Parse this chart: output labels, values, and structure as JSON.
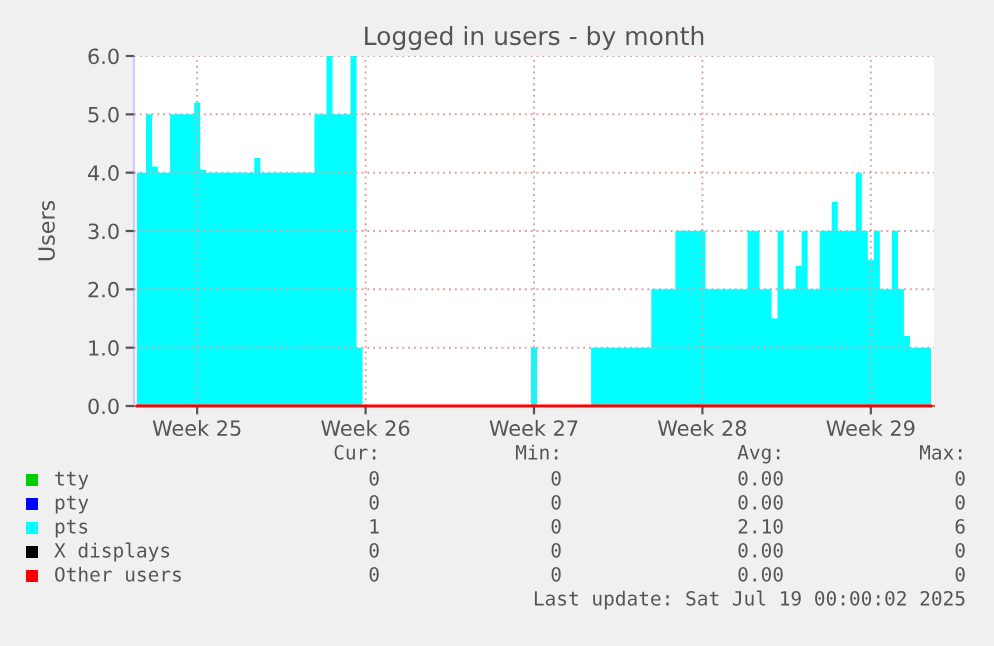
{
  "chart_data": {
    "type": "area",
    "title": "Logged in users - by month",
    "ylabel": "Users",
    "ylim": [
      0,
      6
    ],
    "categories": [
      null,
      null,
      null,
      null,
      null,
      null,
      null,
      null,
      null,
      null,
      "Week 25",
      null,
      null,
      null,
      null,
      null,
      null,
      null,
      null,
      null,
      null,
      null,
      null,
      null,
      null,
      null,
      null,
      null,
      null,
      null,
      null,
      null,
      null,
      null,
      null,
      null,
      null,
      null,
      "Week 26",
      null,
      null,
      null,
      null,
      null,
      null,
      null,
      null,
      null,
      null,
      null,
      null,
      null,
      null,
      null,
      null,
      null,
      null,
      null,
      null,
      null,
      null,
      null,
      null,
      null,
      null,
      null,
      "Week 27",
      null,
      null,
      null,
      null,
      null,
      null,
      null,
      null,
      null,
      null,
      null,
      null,
      null,
      null,
      null,
      null,
      null,
      null,
      null,
      null,
      null,
      null,
      null,
      null,
      null,
      null,
      null,
      "Week 28",
      null,
      null,
      null,
      null,
      null,
      null,
      null,
      null,
      null,
      null,
      null,
      null,
      null,
      null,
      null,
      null,
      null,
      null,
      null,
      null,
      null,
      null,
      null,
      null,
      null,
      null,
      null,
      "Week 29",
      null,
      null,
      null,
      null,
      null,
      null,
      null,
      null,
      null,
      null
    ],
    "yticks": [
      {
        "value": 0,
        "label": "0.0"
      },
      {
        "value": 1,
        "label": "1.0"
      },
      {
        "value": 2,
        "label": "2.0"
      },
      {
        "value": 3,
        "label": "3.0"
      },
      {
        "value": 4,
        "label": "4.0"
      },
      {
        "value": 5,
        "label": "5.0"
      },
      {
        "value": 6,
        "label": "6.0"
      }
    ],
    "grid": true,
    "legend": "bottom",
    "series": [
      {
        "name": "tty",
        "type": "line",
        "color": "#00cc00",
        "values": [
          null,
          null,
          null,
          null,
          null,
          null,
          null,
          null,
          null,
          null,
          null,
          null,
          null,
          null,
          null,
          null,
          null,
          null,
          null,
          null,
          null,
          null,
          null,
          null,
          null,
          null,
          null,
          null,
          null,
          null,
          null,
          null,
          null,
          null,
          null,
          null,
          null,
          null,
          null,
          null,
          null,
          null,
          null,
          null,
          null,
          null,
          null,
          null,
          null,
          null,
          null,
          null,
          null,
          null,
          null,
          null,
          null,
          null,
          null,
          null,
          null,
          null,
          null,
          null,
          null,
          null,
          null,
          null,
          null,
          null,
          null,
          null,
          null,
          null,
          null,
          null,
          null,
          null,
          null,
          null,
          null,
          null,
          null,
          null,
          null,
          null,
          null,
          null,
          null,
          null,
          null,
          null,
          null,
          null,
          null,
          null,
          null,
          null,
          null,
          null,
          null,
          null,
          null,
          null,
          null,
          null,
          null,
          null,
          null,
          null,
          null,
          null,
          null,
          null,
          null,
          null,
          null,
          null,
          null,
          null,
          null,
          null,
          null,
          null,
          null,
          null,
          null,
          null,
          null,
          null,
          null,
          null,
          null
        ]
      },
      {
        "name": "pty",
        "type": "line",
        "color": "#0000ff",
        "values": [
          null,
          null,
          null,
          null,
          null,
          null,
          null,
          null,
          null,
          null,
          null,
          null,
          null,
          null,
          null,
          null,
          null,
          null,
          null,
          null,
          null,
          null,
          null,
          null,
          null,
          null,
          null,
          null,
          null,
          null,
          null,
          null,
          null,
          null,
          null,
          null,
          null,
          null,
          null,
          null,
          null,
          null,
          null,
          null,
          null,
          null,
          null,
          null,
          null,
          null,
          null,
          null,
          null,
          null,
          null,
          null,
          null,
          null,
          null,
          null,
          null,
          null,
          null,
          null,
          null,
          null,
          null,
          null,
          null,
          null,
          null,
          null,
          null,
          null,
          null,
          null,
          null,
          null,
          null,
          null,
          null,
          null,
          null,
          null,
          null,
          null,
          null,
          null,
          null,
          null,
          null,
          null,
          null,
          null,
          null,
          null,
          null,
          null,
          null,
          null,
          null,
          null,
          null,
          null,
          null,
          null,
          null,
          null,
          null,
          null,
          null,
          null,
          null,
          null,
          null,
          null,
          null,
          null,
          null,
          null,
          null,
          null,
          null,
          null,
          null,
          null,
          null,
          null,
          null,
          null,
          null,
          null,
          null
        ]
      },
      {
        "name": "pts",
        "color": "#00ffff",
        "values": [
          4,
          4,
          5,
          4.1,
          4,
          4,
          5,
          5,
          5,
          5,
          5.2,
          4.05,
          4,
          4,
          4,
          4,
          4,
          4,
          4,
          4,
          4.25,
          4,
          4,
          4,
          4,
          4,
          4,
          4,
          4,
          4,
          5,
          5,
          6,
          5,
          5,
          5,
          6,
          1,
          0,
          0,
          0,
          0,
          0,
          0,
          0,
          0,
          0,
          0,
          0,
          0,
          0,
          0,
          0,
          0,
          0,
          0,
          0,
          0,
          0,
          0,
          0,
          0,
          0,
          0,
          0,
          0,
          1,
          0,
          0,
          0,
          0,
          0,
          0,
          0,
          0,
          0,
          1,
          1,
          1,
          1,
          1,
          1,
          1,
          1,
          1,
          1,
          2,
          2,
          2,
          2,
          3,
          3,
          3,
          3,
          3,
          2,
          2,
          2,
          2,
          2,
          2,
          2,
          3,
          3,
          2,
          2,
          1.5,
          3,
          2,
          2,
          2.4,
          3,
          2,
          2,
          3,
          3,
          3.5,
          3,
          3,
          3,
          4,
          3,
          2.5,
          3,
          2,
          2,
          3,
          2,
          1.2,
          1,
          1,
          1,
          1
        ]
      },
      {
        "name": "X displays",
        "type": "line",
        "color": "#000000",
        "values": [
          null,
          null,
          null,
          null,
          null,
          null,
          null,
          null,
          null,
          null,
          null,
          null,
          null,
          null,
          null,
          null,
          null,
          null,
          null,
          null,
          null,
          null,
          null,
          null,
          null,
          null,
          null,
          null,
          null,
          null,
          null,
          null,
          null,
          null,
          null,
          null,
          null,
          null,
          null,
          null,
          null,
          null,
          null,
          null,
          null,
          null,
          null,
          null,
          null,
          null,
          null,
          null,
          null,
          null,
          null,
          null,
          null,
          null,
          null,
          null,
          null,
          null,
          null,
          null,
          null,
          null,
          null,
          null,
          null,
          null,
          null,
          null,
          null,
          null,
          null,
          null,
          null,
          null,
          null,
          null,
          null,
          null,
          null,
          null,
          null,
          null,
          null,
          null,
          null,
          null,
          null,
          null,
          null,
          null,
          null,
          null,
          null,
          null,
          null,
          null,
          null,
          null,
          null,
          null,
          null,
          null,
          null,
          null,
          null,
          null,
          null,
          null,
          null,
          null,
          null,
          null,
          null,
          null,
          null,
          null,
          null,
          null,
          null,
          null,
          null,
          null,
          null,
          null,
          null,
          null,
          null,
          null,
          null
        ]
      },
      {
        "name": "Other users",
        "type": "line",
        "color": "#ff0000",
        "values": [
          0,
          0,
          0,
          0,
          0,
          0,
          0,
          0,
          0,
          0,
          0,
          0,
          0,
          0,
          0,
          0,
          0,
          0,
          0,
          0,
          0,
          0,
          0,
          0,
          0,
          0,
          0,
          0,
          0,
          0,
          0,
          0,
          0,
          0,
          0,
          0,
          0,
          0,
          0,
          0,
          0,
          0,
          0,
          0,
          0,
          0,
          0,
          0,
          0,
          0,
          0,
          0,
          0,
          0,
          0,
          0,
          0,
          0,
          0,
          0,
          0,
          0,
          0,
          0,
          0,
          0,
          0,
          0,
          0,
          0,
          0,
          0,
          0,
          0,
          0,
          0,
          0,
          0,
          0,
          0,
          0,
          0,
          0,
          0,
          0,
          0,
          0,
          0,
          0,
          0,
          0,
          0,
          0,
          0,
          0,
          0,
          0,
          0,
          0,
          0,
          0,
          0,
          0,
          0,
          0,
          0,
          0,
          0,
          0,
          0,
          0,
          0,
          0,
          0,
          0,
          0,
          0,
          0,
          0,
          0,
          0,
          0,
          0,
          0,
          0,
          0,
          0,
          0,
          0,
          0,
          0,
          0,
          0
        ]
      }
    ],
    "annotations": [
      "Cur:",
      "Min:",
      "Avg:",
      "Max:",
      "0",
      "0",
      "0.00",
      "0",
      "0",
      "0",
      "0.00",
      "0",
      "1",
      "0",
      "2.10",
      "6",
      "0",
      "0",
      "0.00",
      "0",
      "0",
      "0",
      "0.00",
      "0",
      "Last update: Sat Jul 19 00:00:02 2025"
    ]
  }
}
